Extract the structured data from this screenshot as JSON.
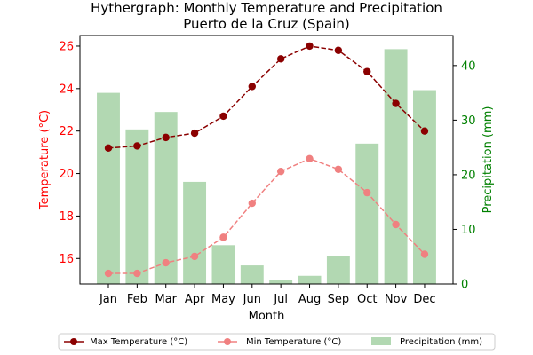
{
  "chart_data": {
    "type": "bar+line",
    "title_line1": "Hythergraph: Monthly Temperature and Precipitation",
    "title_line2": "Puerto de la Cruz (Spain)",
    "xlabel": "Month",
    "ylabel_left": "Temperature (°C)",
    "ylabel_right": "Precipitation (mm)",
    "categories": [
      "Jan",
      "Feb",
      "Mar",
      "Apr",
      "May",
      "Jun",
      "Jul",
      "Aug",
      "Sep",
      "Oct",
      "Nov",
      "Dec"
    ],
    "temp_ylim": [
      14.8,
      26.5
    ],
    "temp_ticks": [
      16,
      18,
      20,
      22,
      24,
      26
    ],
    "precip_ylim": [
      0,
      45.5
    ],
    "precip_ticks": [
      0,
      10,
      20,
      30,
      40
    ],
    "series": [
      {
        "name": "Max Temperature (°C)",
        "axis": "left",
        "kind": "line",
        "color": "#8b0000",
        "values": [
          21.2,
          21.3,
          21.7,
          21.9,
          22.7,
          24.1,
          25.4,
          26.0,
          25.8,
          24.8,
          23.3,
          22.0
        ]
      },
      {
        "name": "Min Temperature (°C)",
        "axis": "left",
        "kind": "line",
        "color": "#f08080",
        "values": [
          15.3,
          15.3,
          15.8,
          16.1,
          17.0,
          18.6,
          20.1,
          20.7,
          20.2,
          19.1,
          17.6,
          16.2
        ]
      },
      {
        "name": "Precipitation (mm)",
        "axis": "right",
        "kind": "bar",
        "color": "#b2d8b2",
        "values": [
          35,
          28.3,
          31.5,
          18.7,
          7.1,
          3.4,
          0.7,
          1.5,
          5.2,
          25.7,
          43,
          35.5
        ]
      }
    ],
    "left_axis_color": "#ff0000",
    "right_axis_color": "#008000",
    "legend": {
      "placement": "bottom-center",
      "labels": [
        "Max Temperature (°C)",
        "Min Temperature (°C)",
        "Precipitation (mm)"
      ]
    }
  }
}
